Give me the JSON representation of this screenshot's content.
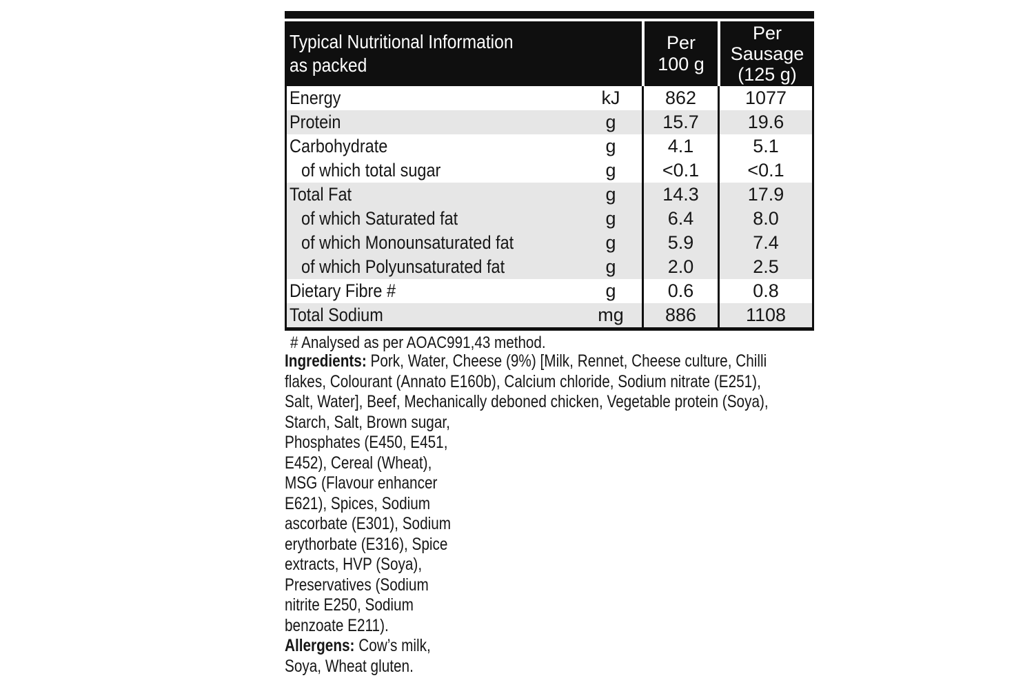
{
  "table": {
    "header": {
      "title_lines": [
        "Typical Nutritional Information",
        "as packed"
      ],
      "per_100g_lines": [
        "Per",
        "100 g"
      ],
      "per_sausage_lines": [
        "Per",
        "Sausage",
        "(125 g)"
      ]
    },
    "rows": [
      {
        "label": "Energy",
        "unit": "kJ",
        "per_100g": "862",
        "per_sausage": "1077"
      },
      {
        "label": "Protein",
        "unit": "g",
        "per_100g": "15.7",
        "per_sausage": "19.6"
      },
      {
        "label": "Carbohydrate",
        "unit": "g",
        "per_100g": "4.1",
        "per_sausage": "5.1"
      },
      {
        "label": "of which total sugar",
        "unit": "g",
        "per_100g": "<0.1",
        "per_sausage": "<0.1"
      },
      {
        "label": "Total Fat",
        "unit": "g",
        "per_100g": "14.3",
        "per_sausage": "17.9"
      },
      {
        "label": "of which Saturated fat",
        "unit": "g",
        "per_100g": "6.4",
        "per_sausage": "8.0"
      },
      {
        "label": "of which Monounsaturated fat",
        "unit": "g",
        "per_100g": "5.9",
        "per_sausage": "7.4"
      },
      {
        "label": "of which Polyunsaturated fat",
        "unit": "g",
        "per_100g": "2.0",
        "per_sausage": "2.5"
      },
      {
        "label": "Dietary Fibre #",
        "unit": "g",
        "per_100g": "0.6",
        "per_sausage": "0.8"
      },
      {
        "label": "Total Sodium",
        "unit": "mg",
        "per_100g": "886",
        "per_sausage": "1108"
      }
    ]
  },
  "footnote": "# Analysed as per AOAC991,43 method.",
  "ingredients": {
    "label": "Ingredients:",
    "first_line_rest": " Pork, Water, Cheese (9%) [Milk, Rennet, Cheese culture, Chilli",
    "lines": [
      "flakes, Colourant (Annato E160b), Calcium chloride, Sodium nitrate (E251),",
      "Salt, Water], Beef, Mechanically deboned chicken, Vegetable protein (Soya),",
      "Starch, Salt, Brown sugar,",
      "Phosphates (E450, E451,",
      "E452), Cereal (Wheat),",
      "MSG (Flavour enhancer",
      "E621), Spices, Sodium",
      "ascorbate (E301), Sodium",
      "erythorbate (E316), Spice",
      "extracts, HVP (Soya),",
      "Preservatives (Sodium",
      "nitrite E250, Sodium",
      "benzoate E211)."
    ]
  },
  "allergens": {
    "label": "Allergens:",
    "first_line_rest": " Cow’s milk,",
    "line2": "Soya, Wheat gluten."
  },
  "colors": {
    "header_bg": "#0f0f0f",
    "stripe": "#e6e6e6",
    "text": "#161616"
  }
}
